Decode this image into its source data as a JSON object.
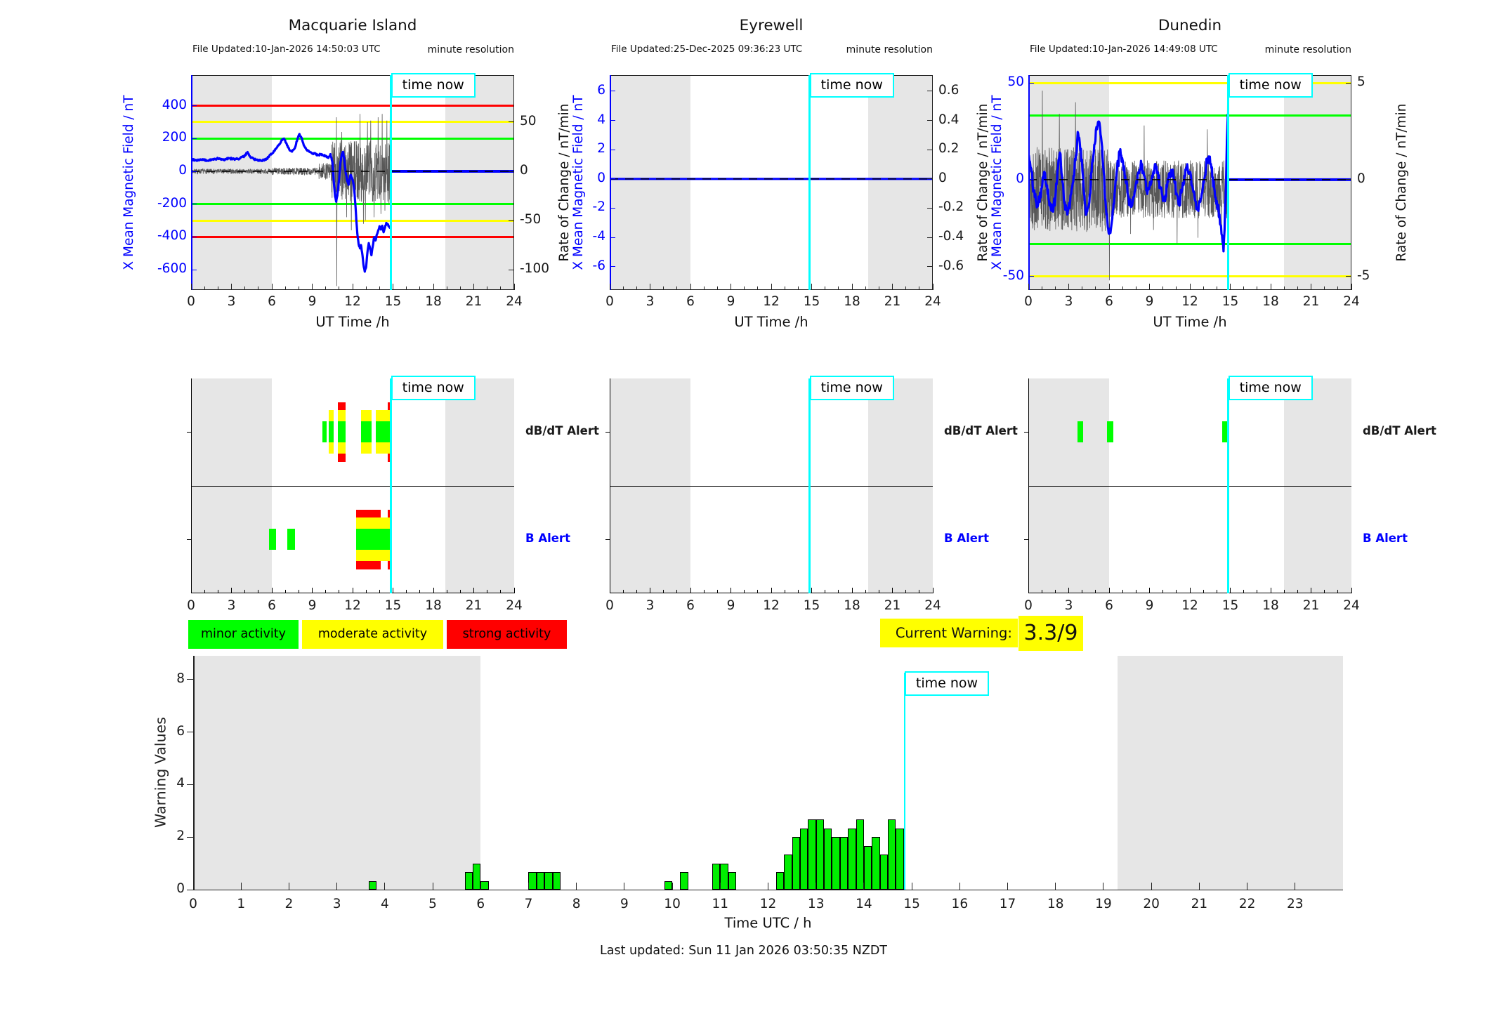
{
  "palette": {
    "blue": "#0000ff",
    "cyan": "#00ffff",
    "red": "#ff0000",
    "yellow": "#ffff00",
    "green": "#00ff00",
    "bar_green": "#00ee00",
    "night_band": "#e6e6e6",
    "noise": "#585858",
    "axis": "#222222"
  },
  "labels": {
    "time_now": "time now",
    "ut_xlabel": "UT Time /h",
    "field_ylabel": "X Mean Magnetic Field / nT",
    "rate_ylabel": "Rate of Change / nT/min",
    "minute_resolution": "minute resolution",
    "dbdt_alert": "dB/dT Alert",
    "b_alert": "B Alert",
    "current_warning_label": "Current Warning:",
    "current_warning_value": "3.3/9",
    "warning_ylabel": "Warning Values",
    "warning_xlabel": "Time UTC / h",
    "last_updated": "Last updated: Sun 11 Jan 2026 03:50:35 NZDT"
  },
  "legend": [
    {
      "label": "minor activity",
      "color": "#00ff00"
    },
    {
      "label": "moderate activity",
      "color": "#ffff00"
    },
    {
      "label": "strong activity",
      "color": "#ff0000"
    }
  ],
  "time_now_h": 14.85,
  "chart_data": [
    {
      "type": "line",
      "title": "Macquarie Island",
      "file_updated": "File Updated:10-Jan-2026 14:50:03 UTC",
      "xlabel": "UT Time /h",
      "xlim": [
        0,
        24
      ],
      "xticks": [
        0,
        3,
        6,
        9,
        12,
        15,
        18,
        21,
        24
      ],
      "ylim": [
        -724,
        587
      ],
      "yticks_left": [
        400,
        200,
        0,
        -200,
        -400,
        -600
      ],
      "yticks_right": [
        [
          50,
          300
        ],
        [
          0,
          0
        ],
        [
          -50,
          -300
        ],
        [
          -100,
          -600
        ]
      ],
      "thresholds": [
        {
          "value": 400,
          "color": "#ff0000"
        },
        {
          "value": 300,
          "color": "#ffff00"
        },
        {
          "value": 200,
          "color": "#00ff00"
        },
        {
          "value": -200,
          "color": "#00ff00"
        },
        {
          "value": -300,
          "color": "#ffff00"
        },
        {
          "value": -400,
          "color": "#ff0000"
        }
      ],
      "night_bands": [
        [
          0,
          6
        ],
        [
          18.9,
          24
        ]
      ],
      "flat_after": true,
      "jitter": 5,
      "series_blue": [
        [
          0,
          75
        ],
        [
          0.4,
          68
        ],
        [
          0.8,
          72
        ],
        [
          1.2,
          65
        ],
        [
          1.6,
          72
        ],
        [
          2,
          78
        ],
        [
          2.4,
          70
        ],
        [
          2.8,
          80
        ],
        [
          3.2,
          74
        ],
        [
          3.6,
          78
        ],
        [
          4,
          95
        ],
        [
          4.2,
          118
        ],
        [
          4.4,
          88
        ],
        [
          4.8,
          70
        ],
        [
          5.2,
          64
        ],
        [
          5.6,
          74
        ],
        [
          6,
          108
        ],
        [
          6.4,
          148
        ],
        [
          6.7,
          185
        ],
        [
          6.9,
          200
        ],
        [
          7.1,
          168
        ],
        [
          7.3,
          132
        ],
        [
          7.5,
          120
        ],
        [
          7.7,
          140
        ],
        [
          7.9,
          195
        ],
        [
          8.05,
          228
        ],
        [
          8.2,
          205
        ],
        [
          8.4,
          155
        ],
        [
          8.6,
          132
        ],
        [
          8.8,
          120
        ],
        [
          9,
          108
        ],
        [
          9.2,
          112
        ],
        [
          9.4,
          98
        ],
        [
          9.6,
          104
        ],
        [
          9.8,
          98
        ],
        [
          10,
          94
        ],
        [
          10.2,
          82
        ],
        [
          10.35,
          105
        ],
        [
          10.5,
          55
        ],
        [
          10.6,
          -60
        ],
        [
          10.7,
          -155
        ],
        [
          10.78,
          -185
        ],
        [
          10.9,
          -125
        ],
        [
          11,
          -45
        ],
        [
          11.1,
          55
        ],
        [
          11.2,
          105
        ],
        [
          11.3,
          118
        ],
        [
          11.4,
          58
        ],
        [
          11.5,
          -15
        ],
        [
          11.6,
          -58
        ],
        [
          11.7,
          -82
        ],
        [
          11.78,
          -45
        ],
        [
          11.85,
          -22
        ],
        [
          11.95,
          -38
        ],
        [
          12.05,
          -70
        ],
        [
          12.15,
          -140
        ],
        [
          12.25,
          -260
        ],
        [
          12.35,
          -380
        ],
        [
          12.45,
          -445
        ],
        [
          12.55,
          -470
        ],
        [
          12.62,
          -450
        ],
        [
          12.7,
          -492
        ],
        [
          12.8,
          -565
        ],
        [
          12.9,
          -612
        ],
        [
          13,
          -585
        ],
        [
          13.1,
          -495
        ],
        [
          13.2,
          -438
        ],
        [
          13.3,
          -472
        ],
        [
          13.4,
          -512
        ],
        [
          13.5,
          -455
        ],
        [
          13.6,
          -402
        ],
        [
          13.7,
          -422
        ],
        [
          13.8,
          -385
        ],
        [
          13.9,
          -362
        ],
        [
          14,
          -335
        ],
        [
          14.1,
          -355
        ],
        [
          14.2,
          -332
        ],
        [
          14.3,
          -372
        ],
        [
          14.4,
          -345
        ],
        [
          14.5,
          -315
        ],
        [
          14.6,
          -322
        ],
        [
          14.7,
          -335
        ],
        [
          14.83,
          -345
        ]
      ],
      "noise": {
        "seed": 7,
        "step": 0.012,
        "end": 14.85,
        "bias": 0,
        "amp_segments": [
          [
            0,
            6,
            15
          ],
          [
            6,
            9.5,
            22
          ],
          [
            9.5,
            10.4,
            50
          ],
          [
            10.4,
            14.85,
            190
          ]
        ],
        "spikes": [
          [
            10.8,
            330
          ],
          [
            10.82,
            -700
          ],
          [
            11.2,
            240
          ],
          [
            11.55,
            -280
          ],
          [
            11.9,
            -360
          ],
          [
            12.2,
            -300
          ],
          [
            12.55,
            350
          ],
          [
            12.8,
            -320
          ],
          [
            12.95,
            -300
          ],
          [
            13.1,
            300
          ],
          [
            13.35,
            310
          ],
          [
            13.6,
            -280
          ],
          [
            13.9,
            330
          ],
          [
            14.1,
            -260
          ],
          [
            14.2,
            350
          ],
          [
            14.4,
            -240
          ],
          [
            14.55,
            310
          ],
          [
            14.7,
            -200
          ],
          [
            14.78,
            345
          ]
        ]
      },
      "alerts": {
        "dbdt": [
          {
            "x0": 9.75,
            "x1": 10.05,
            "level": 1
          },
          {
            "x0": 10.25,
            "x1": 10.6,
            "level": 2
          },
          {
            "x0": 10.9,
            "x1": 11.5,
            "level": 3
          },
          {
            "x0": 12.6,
            "x1": 13.4,
            "level": 2
          },
          {
            "x0": 13.7,
            "x1": 14.6,
            "level": 2
          },
          {
            "x0": 14.6,
            "x1": 14.85,
            "level": 3
          }
        ],
        "b": [
          {
            "x0": 5.8,
            "x1": 6.3,
            "level": 1
          },
          {
            "x0": 7.15,
            "x1": 7.7,
            "level": 1
          },
          {
            "x0": 12.25,
            "x1": 14.1,
            "level": 3
          },
          {
            "x0": 14.1,
            "x1": 14.6,
            "level": 2
          },
          {
            "x0": 14.6,
            "x1": 14.9,
            "level": 3
          }
        ]
      }
    },
    {
      "type": "line",
      "title": "Eyrewell",
      "file_updated": "File Updated:25-Dec-2025 09:36:23 UTC",
      "xlabel": "UT Time /h",
      "xlim": [
        0,
        24
      ],
      "xticks": [
        0,
        3,
        6,
        9,
        12,
        15,
        18,
        21,
        24
      ],
      "ylim": [
        -7.6,
        7.1
      ],
      "yticks_left": [
        6,
        4,
        2,
        0,
        -2,
        -4,
        -6
      ],
      "yticks_right": [
        [
          0.6,
          6
        ],
        [
          0.4,
          4
        ],
        [
          0.2,
          2
        ],
        [
          0,
          0
        ],
        [
          -0.2,
          -2
        ],
        [
          -0.4,
          -4
        ],
        [
          -0.6,
          -6
        ]
      ],
      "thresholds": [],
      "night_bands": [
        [
          0,
          6
        ],
        [
          19.2,
          24
        ]
      ],
      "flat_after": false,
      "jitter": 0,
      "series_blue": [
        [
          0,
          0
        ],
        [
          24,
          0
        ]
      ],
      "noise": null,
      "alerts": {
        "dbdt": [],
        "b": []
      }
    },
    {
      "type": "line",
      "title": "Dunedin",
      "file_updated": "File Updated:10-Jan-2026 14:49:08 UTC",
      "xlabel": "UT Time /h",
      "xlim": [
        0,
        24
      ],
      "xticks": [
        0,
        3,
        6,
        9,
        12,
        15,
        18,
        21,
        24
      ],
      "ylim": [
        -57,
        54
      ],
      "yticks_left": [
        50,
        0,
        -50
      ],
      "yticks_right": [
        [
          5,
          50
        ],
        [
          0,
          0
        ],
        [
          -5,
          -50
        ]
      ],
      "thresholds": [
        {
          "value": 50,
          "color": "#ffff00"
        },
        {
          "value": 33.3,
          "color": "#00ff00"
        },
        {
          "value": -33.3,
          "color": "#00ff00"
        },
        {
          "value": -50,
          "color": "#ffff00"
        }
      ],
      "night_bands": [
        [
          0,
          6
        ],
        [
          19.0,
          24
        ]
      ],
      "flat_after": true,
      "jitter": 3,
      "series_blue": [
        [
          0,
          12
        ],
        [
          0.2,
          6
        ],
        [
          0.4,
          -6
        ],
        [
          0.6,
          -12
        ],
        [
          0.8,
          -10
        ],
        [
          1,
          -4
        ],
        [
          1.2,
          4
        ],
        [
          1.4,
          -3
        ],
        [
          1.6,
          -12
        ],
        [
          1.8,
          -16
        ],
        [
          2,
          -10
        ],
        [
          2.2,
          6
        ],
        [
          2.35,
          14
        ],
        [
          2.5,
          2
        ],
        [
          2.7,
          -12
        ],
        [
          2.9,
          -18
        ],
        [
          3.1,
          -12
        ],
        [
          3.3,
          -2
        ],
        [
          3.5,
          10
        ],
        [
          3.7,
          24
        ],
        [
          3.9,
          16
        ],
        [
          4.1,
          -4
        ],
        [
          4.3,
          -18
        ],
        [
          4.5,
          -13
        ],
        [
          4.7,
          4
        ],
        [
          4.9,
          18
        ],
        [
          5.1,
          26
        ],
        [
          5.25,
          30
        ],
        [
          5.4,
          22
        ],
        [
          5.6,
          4
        ],
        [
          5.8,
          -18
        ],
        [
          6,
          -28
        ],
        [
          6.2,
          -22
        ],
        [
          6.4,
          -8
        ],
        [
          6.6,
          6
        ],
        [
          6.8,
          14
        ],
        [
          7,
          10
        ],
        [
          7.2,
          2
        ],
        [
          7.4,
          -8
        ],
        [
          7.6,
          -14
        ],
        [
          7.8,
          -9
        ],
        [
          8,
          -2
        ],
        [
          8.2,
          4
        ],
        [
          8.4,
          8
        ],
        [
          8.6,
          2
        ],
        [
          8.8,
          -6
        ],
        [
          9,
          -4
        ],
        [
          9.2,
          2
        ],
        [
          9.4,
          8
        ],
        [
          9.6,
          4
        ],
        [
          9.8,
          -4
        ],
        [
          10,
          -11
        ],
        [
          10.2,
          -8
        ],
        [
          10.4,
          -1
        ],
        [
          10.6,
          5
        ],
        [
          10.8,
          1
        ],
        [
          11,
          -7
        ],
        [
          11.2,
          -12
        ],
        [
          11.4,
          -6
        ],
        [
          11.6,
          2
        ],
        [
          11.8,
          8
        ],
        [
          12,
          4
        ],
        [
          12.2,
          -4
        ],
        [
          12.4,
          -11
        ],
        [
          12.6,
          -15
        ],
        [
          12.8,
          -10
        ],
        [
          13,
          -1
        ],
        [
          13.2,
          7
        ],
        [
          13.4,
          12
        ],
        [
          13.6,
          6
        ],
        [
          13.8,
          -4
        ],
        [
          14,
          -11
        ],
        [
          14.2,
          -18
        ],
        [
          14.35,
          -28
        ],
        [
          14.5,
          -37
        ],
        [
          14.65,
          -10
        ],
        [
          14.75,
          20
        ],
        [
          14.82,
          34
        ]
      ],
      "noise": {
        "seed": 13,
        "step": 0.012,
        "end": 14.85,
        "bias": -5,
        "amp_segments": [
          [
            0,
            6,
            22
          ],
          [
            6,
            14.85,
            15
          ]
        ],
        "spikes": [
          [
            1.05,
            46
          ],
          [
            2.3,
            34
          ],
          [
            3.5,
            40
          ],
          [
            5.3,
            30
          ],
          [
            6.02,
            -52
          ],
          [
            7.6,
            -28
          ],
          [
            8.6,
            28
          ],
          [
            9.3,
            -26
          ],
          [
            11.05,
            -33
          ],
          [
            12.6,
            -30
          ],
          [
            13.3,
            26
          ],
          [
            14.35,
            -30
          ],
          [
            14.6,
            -25
          ],
          [
            14.78,
            40
          ]
        ]
      },
      "alerts": {
        "dbdt": [
          {
            "x0": 3.65,
            "x1": 4.05,
            "level": 1
          },
          {
            "x0": 5.85,
            "x1": 6.3,
            "level": 1
          },
          {
            "x0": 14.4,
            "x1": 14.85,
            "level": 1
          }
        ],
        "b": []
      }
    },
    {
      "type": "bar",
      "title": "Warning Values",
      "ylabel": "Warning Values",
      "xlabel": "Time UTC / h",
      "xlim": [
        0,
        24
      ],
      "ylim": [
        0,
        8.9
      ],
      "yticks": [
        0,
        2,
        4,
        6,
        8
      ],
      "xticks": [
        0,
        1,
        2,
        3,
        4,
        5,
        6,
        7,
        8,
        9,
        10,
        11,
        12,
        13,
        14,
        15,
        16,
        17,
        18,
        19,
        20,
        21,
        22,
        23
      ],
      "night_bands": [
        [
          0,
          6
        ],
        [
          19.3,
          24
        ]
      ],
      "bar_width_h": 0.1667,
      "bars": [
        [
          3.667,
          0.33
        ],
        [
          5.667,
          0.67
        ],
        [
          5.833,
          1.0
        ],
        [
          6.0,
          0.33
        ],
        [
          7.0,
          0.67
        ],
        [
          7.167,
          0.67
        ],
        [
          7.333,
          0.67
        ],
        [
          7.5,
          0.67
        ],
        [
          9.833,
          0.33
        ],
        [
          10.167,
          0.67
        ],
        [
          10.833,
          1.0
        ],
        [
          11.0,
          1.0
        ],
        [
          11.167,
          0.67
        ],
        [
          12.167,
          0.67
        ],
        [
          12.333,
          1.33
        ],
        [
          12.5,
          2.0
        ],
        [
          12.667,
          2.33
        ],
        [
          12.833,
          2.67
        ],
        [
          13.0,
          2.67
        ],
        [
          13.167,
          2.33
        ],
        [
          13.333,
          2.0
        ],
        [
          13.5,
          2.0
        ],
        [
          13.667,
          2.33
        ],
        [
          13.833,
          2.67
        ],
        [
          14.0,
          1.67
        ],
        [
          14.167,
          2.0
        ],
        [
          14.333,
          1.33
        ],
        [
          14.5,
          2.67
        ],
        [
          14.667,
          2.33
        ]
      ]
    }
  ],
  "alert_rows": [
    "dB/dT Alert",
    "B Alert"
  ]
}
